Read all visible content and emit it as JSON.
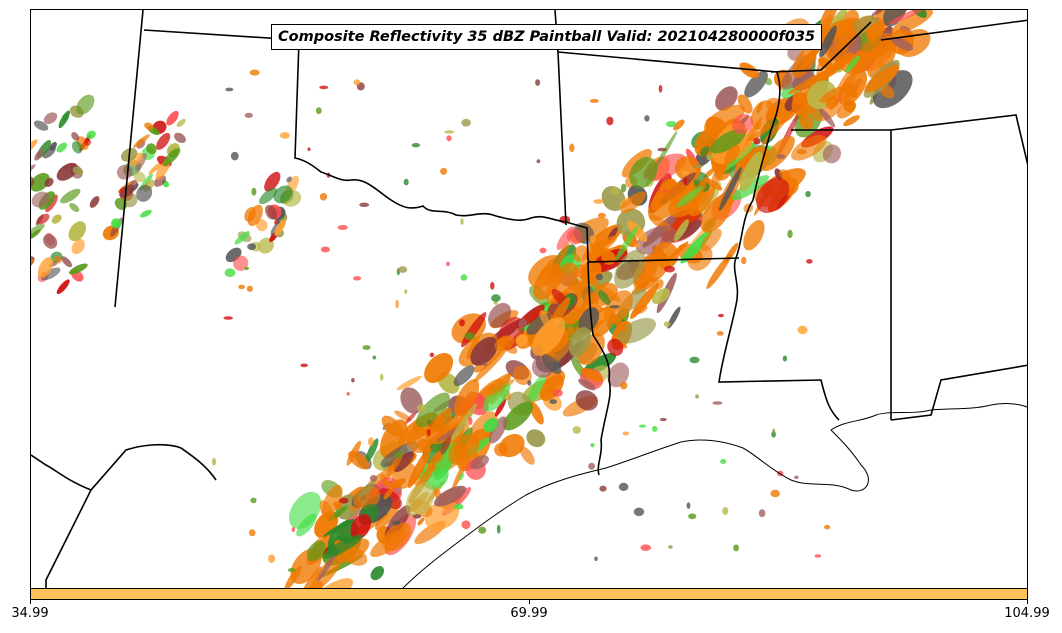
{
  "title": "Composite Reflectivity 35 dBZ Paintball Valid: 202104280000f035",
  "colorbar": {
    "color": "#ffc25c",
    "ticks": [
      {
        "label": "34.99"
      },
      {
        "label": "69.99"
      },
      {
        "label": "104.99"
      }
    ]
  },
  "member_colors": [
    "#ff4d4d",
    "#f07800",
    "#ffa030",
    "#d01010",
    "#8b3a3a",
    "#9a9a4a",
    "#b8b84a",
    "#5a9a1a",
    "#2a8a2a",
    "#44dd44",
    "#555555",
    "#a06060"
  ],
  "map": {
    "border_color": "#000000",
    "coast_color": "#000000"
  }
}
